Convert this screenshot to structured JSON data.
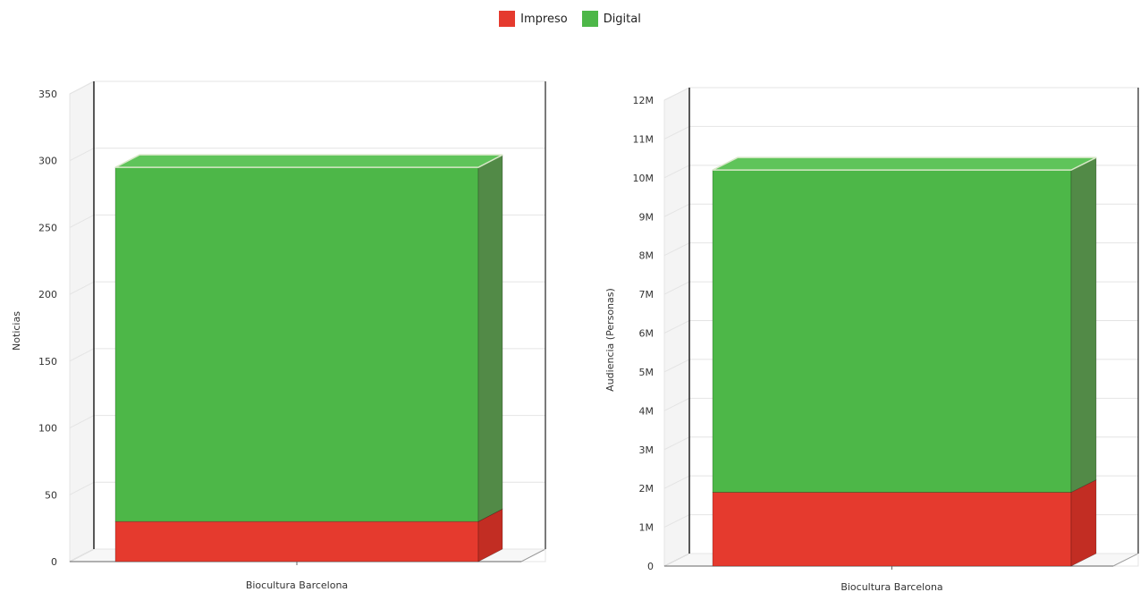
{
  "colors": {
    "impreso": "#e53a2e",
    "impreso_side": "#c22d23",
    "digital": "#4db748",
    "digital_side": "#528a47",
    "digital_top": "#5fc45a",
    "grid": "#e4e4e4",
    "wall": "#f4f4f4"
  },
  "legend": [
    {
      "name": "Impreso",
      "color": "#e53a2e",
      "icon": "red-square"
    },
    {
      "name": "Digital",
      "color": "#4db748",
      "icon": "green-square"
    }
  ],
  "chart_data": [
    {
      "type": "bar",
      "stacked": true,
      "three_d": true,
      "categories": [
        "Biocultura Barcelona"
      ],
      "series": [
        {
          "name": "Impreso",
          "values": [
            30
          ]
        },
        {
          "name": "Digital",
          "values": [
            265
          ]
        }
      ],
      "ylabel": "Noticias",
      "ylim": [
        0,
        350
      ],
      "yticks": [
        0,
        50,
        100,
        150,
        200,
        250,
        300,
        350
      ],
      "ytick_labels": [
        "0",
        "50",
        "100",
        "150",
        "200",
        "250",
        "300",
        "350"
      ],
      "grid": true
    },
    {
      "type": "bar",
      "stacked": true,
      "three_d": true,
      "categories": [
        "Biocultura Barcelona"
      ],
      "series": [
        {
          "name": "Impreso",
          "values": [
            1900000
          ]
        },
        {
          "name": "Digital",
          "values": [
            8300000
          ]
        }
      ],
      "ylabel": "Audiencia (Personas)",
      "ylim": [
        0,
        12000000
      ],
      "yticks": [
        0,
        1000000,
        2000000,
        3000000,
        4000000,
        5000000,
        6000000,
        7000000,
        8000000,
        9000000,
        10000000,
        11000000,
        12000000
      ],
      "ytick_labels": [
        "0",
        "1M",
        "2M",
        "3M",
        "4M",
        "5M",
        "6M",
        "7M",
        "8M",
        "9M",
        "10M",
        "11M",
        "12M"
      ],
      "grid": true
    }
  ]
}
